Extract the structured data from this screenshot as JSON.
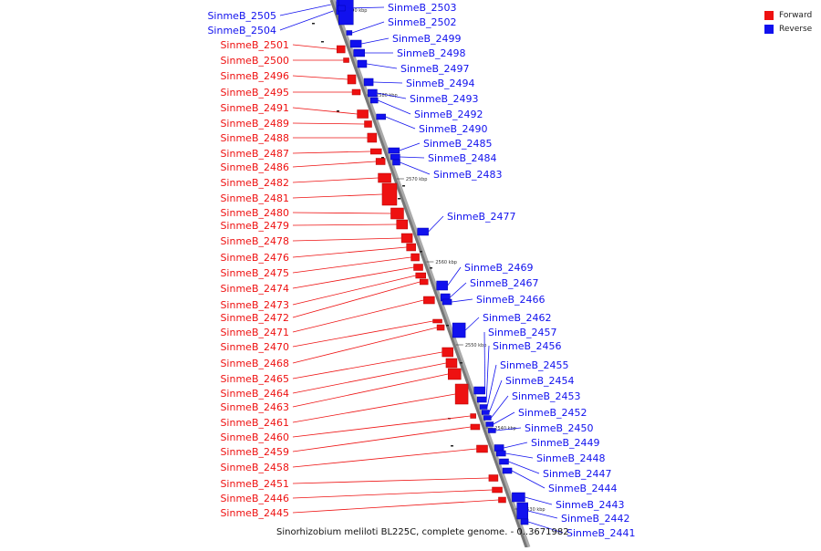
{
  "legend": [
    {
      "label": "Forward",
      "color": "#ee1111"
    },
    {
      "label": "Reverse",
      "color": "#1111ee"
    }
  ],
  "caption": "Sinorhizobium meliloti BL225C, complete genome. - 0..3671982",
  "ticks": [
    "2590 kbp",
    "2580 kbp",
    "2570 kbp",
    "2560 kbp",
    "2550 kbp",
    "2540 kbp",
    "2530 kbp"
  ],
  "genes_forward": [
    "SinmeB_2501",
    "SinmeB_2500",
    "SinmeB_2496",
    "SinmeB_2495",
    "SinmeB_2491",
    "SinmeB_2489",
    "SinmeB_2488",
    "SinmeB_2487",
    "SinmeB_2486",
    "SinmeB_2482",
    "SinmeB_2481",
    "SinmeB_2480",
    "SinmeB_2479",
    "SinmeB_2478",
    "SinmeB_2476",
    "SinmeB_2475",
    "SinmeB_2474",
    "SinmeB_2473",
    "SinmeB_2472",
    "SinmeB_2471",
    "SinmeB_2470",
    "SinmeB_2468",
    "SinmeB_2465",
    "SinmeB_2464",
    "SinmeB_2463",
    "SinmeB_2461",
    "SinmeB_2460",
    "SinmeB_2459",
    "SinmeB_2458",
    "SinmeB_2451",
    "SinmeB_2446",
    "SinmeB_2445"
  ],
  "genes_reverse_left": [
    "SinmeB_2505",
    "SinmeB_2504"
  ],
  "genes_reverse": [
    "SinmeB_2503",
    "SinmeB_2502",
    "SinmeB_2499",
    "SinmeB_2498",
    "SinmeB_2497",
    "SinmeB_2494",
    "SinmeB_2493",
    "SinmeB_2492",
    "SinmeB_2490",
    "SinmeB_2485",
    "SinmeB_2484",
    "SinmeB_2483",
    "SinmeB_2477",
    "SinmeB_2469",
    "SinmeB_2467",
    "SinmeB_2466",
    "SinmeB_2462",
    "SinmeB_2457",
    "SinmeB_2456",
    "SinmeB_2455",
    "SinmeB_2454",
    "SinmeB_2453",
    "SinmeB_2452",
    "SinmeB_2450",
    "SinmeB_2449",
    "SinmeB_2448",
    "SinmeB_2447",
    "SinmeB_2444",
    "SinmeB_2443",
    "SinmeB_2442",
    "SinmeB_2441"
  ]
}
